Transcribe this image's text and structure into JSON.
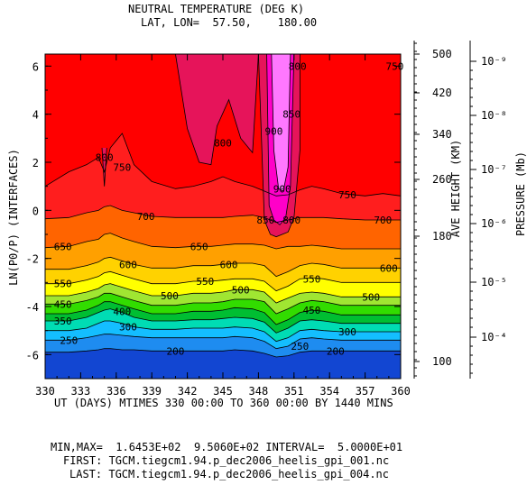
{
  "header": {
    "title": "NEUTRAL TEMPERATURE (DEG K)",
    "subtitle": "LAT, LON=  57.50,    180.00"
  },
  "footer": {
    "minmax": "MIN,MAX=  1.6453E+02  9.5060E+02 INTERVAL=  5.0000E+01",
    "first": "FIRST: TGCM.tiegcm1.94.p_dec2006_heelis_gpi_001.nc",
    "last": "LAST: TGCM.tiegcm1.94.p_dec2006_heelis_gpi_004.nc"
  },
  "chart_data": {
    "type": "heatmap",
    "title": "NEUTRAL TEMPERATURE (DEG K)",
    "subtitle": "LAT, LON=  57.50,    180.00",
    "xlabel": "UT (DAYS) MTIMES 330 00:00 TO 360 00:00 BY 1440 MINS",
    "ylabel": "LN(P0/P) (INTERFACES)",
    "xlim": [
      330,
      360
    ],
    "ylim": [
      -7,
      6.5
    ],
    "x_ticks": [
      "330",
      "333",
      "336",
      "339",
      "342",
      "345",
      "348",
      "351",
      "354",
      "357",
      "360"
    ],
    "y_ticks": [
      "-6",
      "-4",
      "-2",
      "0",
      "2",
      "4",
      "6"
    ],
    "right_axis_height": {
      "label": "AVE HEIGHT (KM)",
      "ticks": [
        "500",
        "420",
        "340",
        "260",
        "180",
        "100"
      ]
    },
    "right_axis_pressure": {
      "label": "PRESSURE (Mb)",
      "ticks": [
        "10⁻⁹",
        "10⁻⁸",
        "10⁻⁷",
        "10⁻⁶",
        "10⁻⁵",
        "10⁻⁴"
      ]
    },
    "min": 164.53,
    "max": 950.6,
    "interval": 50,
    "x": [
      330,
      332,
      333.5,
      334.5,
      335,
      335.5,
      336.5,
      337.5,
      339,
      341,
      342.5,
      344,
      345,
      346,
      347.5,
      348.5,
      349.5,
      350.5,
      351.5,
      352.5,
      353.5,
      355,
      357,
      358.5,
      360
    ],
    "contour_levels": [
      {
        "value": 200,
        "color": "#1e50e6",
        "y": [
          -5.9,
          -5.9,
          -5.85,
          -5.8,
          -5.75,
          -5.75,
          -5.8,
          -5.8,
          -5.85,
          -5.85,
          -5.85,
          -5.85,
          -5.85,
          -5.8,
          -5.85,
          -5.95,
          -6.1,
          -6.05,
          -5.9,
          -5.85,
          -5.85,
          -5.85,
          -5.85,
          -5.85,
          -5.85
        ]
      },
      {
        "value": 250,
        "color": "#1e8cf0",
        "y": [
          -5.4,
          -5.4,
          -5.3,
          -5.2,
          -5.15,
          -5.15,
          -5.2,
          -5.25,
          -5.3,
          -5.3,
          -5.3,
          -5.3,
          -5.3,
          -5.25,
          -5.3,
          -5.45,
          -5.75,
          -5.65,
          -5.35,
          -5.3,
          -5.35,
          -5.4,
          -5.4,
          -5.4,
          -5.4
        ]
      },
      {
        "value": 300,
        "color": "#14beff",
        "y": [
          -5.0,
          -5.0,
          -4.9,
          -4.7,
          -4.6,
          -4.6,
          -4.7,
          -4.85,
          -4.95,
          -4.95,
          -4.9,
          -4.9,
          -4.9,
          -4.85,
          -4.9,
          -5.05,
          -5.45,
          -5.3,
          -5.0,
          -4.95,
          -5.0,
          -5.05,
          -5.05,
          -5.05,
          -5.05
        ]
      },
      {
        "value": 350,
        "color": "#00dcb4",
        "y": [
          -4.6,
          -4.6,
          -4.45,
          -4.25,
          -4.15,
          -4.1,
          -4.25,
          -4.45,
          -4.6,
          -4.6,
          -4.55,
          -4.55,
          -4.5,
          -4.45,
          -4.5,
          -4.65,
          -5.1,
          -4.9,
          -4.6,
          -4.55,
          -4.6,
          -4.7,
          -4.7,
          -4.7,
          -4.7
        ]
      },
      {
        "value": 400,
        "color": "#00be32",
        "y": [
          -4.3,
          -4.3,
          -4.15,
          -3.95,
          -3.8,
          -3.8,
          -3.95,
          -4.1,
          -4.3,
          -4.3,
          -4.2,
          -4.2,
          -4.15,
          -4.05,
          -4.1,
          -4.25,
          -4.75,
          -4.55,
          -4.25,
          -4.15,
          -4.2,
          -4.35,
          -4.35,
          -4.35,
          -4.35
        ]
      },
      {
        "value": 450,
        "color": "#32dc00",
        "y": [
          -3.9,
          -3.9,
          -3.75,
          -3.6,
          -3.45,
          -3.45,
          -3.6,
          -3.75,
          -3.95,
          -3.95,
          -3.85,
          -3.85,
          -3.8,
          -3.7,
          -3.7,
          -3.8,
          -4.3,
          -4.1,
          -3.85,
          -3.75,
          -3.8,
          -3.95,
          -3.95,
          -3.95,
          -3.95
        ]
      },
      {
        "value": 500,
        "color": "#a0e632",
        "y": [
          -3.55,
          -3.55,
          -3.4,
          -3.25,
          -3.1,
          -3.05,
          -3.2,
          -3.35,
          -3.55,
          -3.55,
          -3.45,
          -3.45,
          -3.4,
          -3.3,
          -3.3,
          -3.4,
          -3.85,
          -3.65,
          -3.45,
          -3.4,
          -3.45,
          -3.6,
          -3.6,
          -3.6,
          -3.6
        ]
      },
      {
        "value": 550,
        "color": "#ffff00",
        "y": [
          -3.05,
          -3.05,
          -2.9,
          -2.75,
          -2.6,
          -2.55,
          -2.7,
          -2.85,
          -3.05,
          -3.05,
          -2.95,
          -2.95,
          -2.9,
          -2.85,
          -2.85,
          -2.95,
          -3.35,
          -3.15,
          -2.85,
          -2.8,
          -2.85,
          -3.0,
          -3.0,
          -3.0,
          -3.0
        ]
      },
      {
        "value": 600,
        "color": "#ffd200",
        "y": [
          -2.45,
          -2.45,
          -2.3,
          -2.15,
          -2.0,
          -1.95,
          -2.1,
          -2.25,
          -2.4,
          -2.4,
          -2.3,
          -2.3,
          -2.25,
          -2.2,
          -2.2,
          -2.3,
          -2.75,
          -2.55,
          -2.3,
          -2.2,
          -2.25,
          -2.4,
          -2.4,
          -2.4,
          -2.4
        ]
      },
      {
        "value": 650,
        "color": "#ffa000",
        "y": [
          -1.55,
          -1.5,
          -1.3,
          -1.2,
          -1.0,
          -0.95,
          -1.15,
          -1.3,
          -1.5,
          -1.55,
          -1.5,
          -1.5,
          -1.45,
          -1.4,
          -1.4,
          -1.45,
          -1.6,
          -1.5,
          -1.5,
          -1.45,
          -1.5,
          -1.6,
          -1.6,
          -1.6,
          -1.6
        ]
      },
      {
        "value": 700,
        "color": "#ff6400",
        "y": [
          -0.35,
          -0.3,
          -0.1,
          0.0,
          0.15,
          0.2,
          0.0,
          -0.1,
          -0.25,
          -0.3,
          -0.3,
          -0.3,
          -0.3,
          -0.25,
          -0.2,
          -0.3,
          -0.5,
          -0.4,
          -0.3,
          -0.3,
          -0.3,
          -0.35,
          -0.4,
          -0.4,
          -0.4
        ]
      },
      {
        "value": 750,
        "color": "#ff1e1e",
        "y": [
          1.0,
          1.6,
          1.9,
          2.2,
          1.6,
          2.6,
          3.2,
          1.9,
          1.2,
          0.9,
          1.0,
          1.2,
          1.4,
          1.2,
          1.0,
          0.8,
          0.6,
          0.65,
          0.85,
          1.0,
          0.9,
          0.7,
          0.6,
          0.7,
          0.6
        ]
      }
    ],
    "regions_800": [
      {
        "x": [
          341,
          342,
          343,
          344,
          344.5,
          345.5,
          346.5,
          347.5,
          348
        ],
        "y": [
          6.5,
          3.4,
          2.0,
          1.9,
          3.5,
          4.6,
          3.0,
          2.4,
          6.5
        ]
      },
      {
        "x": [
          348,
          348.5,
          349,
          349.5,
          350.5,
          351,
          351.5,
          351.5,
          359.5
        ],
        "y": [
          6.5,
          -0.4,
          -1.0,
          -1.1,
          -0.9,
          -0.3,
          2.5,
          6.5,
          6.5
        ]
      },
      {
        "x": [
          334.8,
          335,
          335.2
        ],
        "y": [
          2.6,
          1.0,
          2.6
        ]
      }
    ],
    "region_850": {
      "x": [
        348.7,
        348.9,
        349.3,
        349.8,
        350.3,
        350.7,
        351
      ],
      "y": [
        6.5,
        0.2,
        -0.4,
        -0.6,
        -0.3,
        1.0,
        6.5
      ]
    },
    "region_900": {
      "x": [
        349.1,
        349.3,
        349.7,
        350.1,
        350.5,
        350.7
      ],
      "y": [
        6.5,
        2.5,
        0.9,
        0.8,
        1.8,
        6.5
      ]
    },
    "contour_labels": [
      {
        "text": "200",
        "x": 341,
        "y": -5.85
      },
      {
        "text": "200",
        "x": 354.5,
        "y": -5.85
      },
      {
        "text": "250",
        "x": 332,
        "y": -5.4
      },
      {
        "text": "250",
        "x": 351.5,
        "y": -5.65
      },
      {
        "text": "300",
        "x": 337,
        "y": -4.85
      },
      {
        "text": "300",
        "x": 355.5,
        "y": -5.05
      },
      {
        "text": "350",
        "x": 331.5,
        "y": -4.6
      },
      {
        "text": "400",
        "x": 336.5,
        "y": -4.2
      },
      {
        "text": "450",
        "x": 331.5,
        "y": -3.9
      },
      {
        "text": "450",
        "x": 352.5,
        "y": -4.15
      },
      {
        "text": "500",
        "x": 340.5,
        "y": -3.55
      },
      {
        "text": "500",
        "x": 346.5,
        "y": -3.3
      },
      {
        "text": "500",
        "x": 357.5,
        "y": -3.6
      },
      {
        "text": "550",
        "x": 331.5,
        "y": -3.05
      },
      {
        "text": "550",
        "x": 343.5,
        "y": -2.95
      },
      {
        "text": "550",
        "x": 352.5,
        "y": -2.85
      },
      {
        "text": "600",
        "x": 337,
        "y": -2.25
      },
      {
        "text": "600",
        "x": 345.5,
        "y": -2.25
      },
      {
        "text": "600",
        "x": 359,
        "y": -2.4
      },
      {
        "text": "650",
        "x": 331.5,
        "y": -1.5
      },
      {
        "text": "650",
        "x": 343,
        "y": -1.5
      },
      {
        "text": "700",
        "x": 338.5,
        "y": -0.25
      },
      {
        "text": "700",
        "x": 358.5,
        "y": -0.4
      },
      {
        "text": "750",
        "x": 336.5,
        "y": 1.8
      },
      {
        "text": "750",
        "x": 355.5,
        "y": 0.65
      },
      {
        "text": "750",
        "x": 359.5,
        "y": 6.0
      },
      {
        "text": "800",
        "x": 335,
        "y": 2.2
      },
      {
        "text": "800",
        "x": 345,
        "y": 2.8
      },
      {
        "text": "800",
        "x": 351.3,
        "y": 6.0
      },
      {
        "text": "800",
        "x": 350.8,
        "y": -0.4
      },
      {
        "text": "850",
        "x": 350.8,
        "y": 4.0
      },
      {
        "text": "850",
        "x": 348.6,
        "y": -0.4
      },
      {
        "text": "900",
        "x": 349.3,
        "y": 3.3
      },
      {
        "text": "900",
        "x": 350,
        "y": 0.9
      }
    ]
  }
}
